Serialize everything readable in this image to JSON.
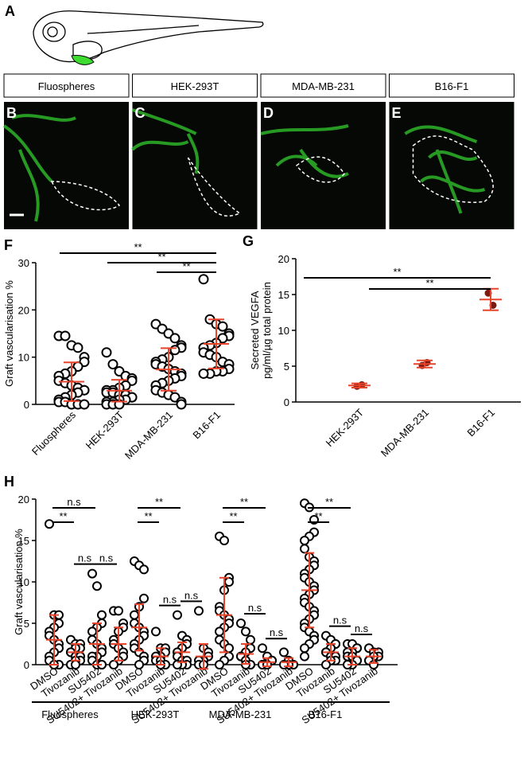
{
  "figure_label": "A",
  "image_panels": [
    {
      "letter": "B",
      "title": "Fluospheres"
    },
    {
      "letter": "C",
      "title": "HEK-293T"
    },
    {
      "letter": "D",
      "title": "MDA-MB-231"
    },
    {
      "letter": "E",
      "title": "B16-F1"
    }
  ],
  "chart_data": [
    {
      "panel": "F",
      "type": "strip",
      "ylabel": "Graft vascularisation %",
      "categories": [
        "Fluospheres",
        "HEK-293T",
        "MDA-MB-231",
        "B16-F1"
      ],
      "values": [
        [
          14.5,
          14.5,
          12.5,
          12,
          10,
          9,
          8,
          7,
          6.5,
          6,
          5,
          4.5,
          4,
          3.5,
          3,
          3,
          2.5,
          2,
          1.5,
          1,
          0.5,
          0.5,
          0,
          0,
          0
        ],
        [
          11,
          8.5,
          7,
          6,
          5.5,
          5,
          4,
          3.5,
          3,
          3,
          2.5,
          2.5,
          2,
          2,
          1.5,
          1.5,
          1,
          1,
          0.5,
          0.5,
          0,
          0,
          0
        ],
        [
          17,
          16,
          15,
          14,
          12.5,
          12,
          11.5,
          10,
          9.5,
          9,
          8.5,
          8,
          7.5,
          7,
          6.5,
          6,
          5.5,
          5,
          4.5,
          4,
          3,
          2.5,
          2,
          1.5,
          0.5,
          0
        ],
        [
          26.5,
          18,
          17,
          16.5,
          15,
          14.5,
          14,
          13,
          12.5,
          12,
          11,
          10.5,
          10,
          9,
          8.5,
          7.5,
          7,
          7,
          6.5,
          6.5
        ]
      ],
      "mean": [
        4.8,
        2.9,
        7.4,
        12.8
      ],
      "sd": [
        4.1,
        2.3,
        4.5,
        5.2
      ],
      "marker_color": "#000000",
      "mean_color": "#e8442c",
      "ylim": [
        0,
        30
      ],
      "yticks": [
        0,
        10,
        20,
        30
      ],
      "significance": [
        {
          "between": [
            "Fluospheres",
            "B16-F1"
          ],
          "label": "**"
        },
        {
          "between": [
            "HEK-293T",
            "B16-F1"
          ],
          "label": "**"
        },
        {
          "between": [
            "MDA-MB-231",
            "B16-F1"
          ],
          "label": "**"
        }
      ]
    },
    {
      "panel": "G",
      "type": "dot",
      "ylabel": [
        "Secreted VEGFA",
        "pg/ml/µg total protein"
      ],
      "categories": [
        "HEK-293T",
        "MDA-MB-231",
        "B16-F1"
      ],
      "values": [
        [
          2.2,
          2.4
        ],
        [
          5.1,
          5.5
        ],
        [
          15.2,
          13.5
        ]
      ],
      "mean": [
        2.3,
        5.3,
        14.3
      ],
      "sd": [
        0.3,
        0.5,
        1.5
      ],
      "marker_color": "#7a1a10",
      "mean_color": "#e8442c",
      "ylim": [
        0,
        20
      ],
      "yticks": [
        0,
        5,
        10,
        15,
        20
      ],
      "significance": [
        {
          "between": [
            "HEK-293T",
            "B16-F1"
          ],
          "label": "**"
        },
        {
          "between": [
            "MDA-MB-231",
            "B16-F1"
          ],
          "label": "**"
        }
      ]
    },
    {
      "panel": "H",
      "type": "grouped-strip",
      "ylabel": "Graft vascularisation %",
      "marker_color": "#000000",
      "mean_color": "#e8442c",
      "ylim": [
        0,
        20
      ],
      "yticks": [
        0,
        5,
        10,
        15,
        20
      ],
      "groups": [
        {
          "name": "Fluospheres",
          "categories": [
            "DMSO",
            "Tivozanib",
            "SU5402",
            "SU5402+ Tivozanib"
          ],
          "values": [
            [
              17,
              6,
              6,
              5,
              4.5,
              4,
              3.5,
              3,
              2.5,
              2,
              1.5,
              1,
              0.5,
              0,
              0,
              0,
              0
            ],
            [
              3,
              2.5,
              2.5,
              2,
              2,
              1.5,
              1.5,
              1,
              1,
              0.5,
              0.5,
              0,
              0,
              0
            ],
            [
              11,
              9.5,
              6,
              5,
              4.5,
              4,
              3,
              2.5,
              2,
              1.5,
              1,
              1,
              0.5,
              0,
              0,
              0
            ],
            [
              6.5,
              6.5,
              5,
              4.5,
              4,
              3,
              2.5,
              2,
              1.5,
              1,
              0.5,
              0,
              0
            ]
          ],
          "mean": [
            3,
            1.5,
            2.5,
            2.5
          ],
          "sd": [
            3,
            1,
            2.5,
            2
          ],
          "significance": [
            {
              "between": [
                "DMSO",
                "SU5402"
              ],
              "label": "n.s"
            },
            {
              "between": [
                "DMSO",
                "Tivozanib"
              ],
              "label": "**"
            },
            {
              "between": [
                "Tivozanib",
                "SU5402"
              ],
              "label": "n.s"
            },
            {
              "between": [
                "SU5402",
                "SU5402+ Tivozanib"
              ],
              "label": "n.s"
            }
          ]
        },
        {
          "name": "HEK-293T",
          "categories": [
            "DMSO",
            "Tivozanib",
            "SU5402",
            "SU5402+ Tivozanib"
          ],
          "values": [
            [
              12.5,
              12,
              11.5,
              8,
              7,
              6,
              5,
              4.5,
              4,
              3.5,
              3,
              2.5,
              2,
              1.5,
              1,
              0.5,
              0
            ],
            [
              4,
              2,
              2,
              1.5,
              1,
              1,
              0.5,
              0.5,
              0,
              0,
              0
            ],
            [
              6,
              3.5,
              3,
              2.5,
              2,
              1.5,
              1,
              0.5,
              0.5,
              0,
              0,
              0
            ],
            [
              6.5,
              2,
              1.5,
              1,
              0.5,
              0.5,
              0,
              0
            ]
          ],
          "mean": [
            4.5,
            1,
            1.5,
            1
          ],
          "sd": [
            2.8,
            1,
            1.2,
            1.5
          ],
          "significance": [
            {
              "between": [
                "DMSO",
                "SU5402"
              ],
              "label": "**"
            },
            {
              "between": [
                "DMSO",
                "Tivozanib"
              ],
              "label": "**"
            },
            {
              "between": [
                "Tivozanib",
                "SU5402"
              ],
              "label": "n.s"
            },
            {
              "between": [
                "SU5402",
                "SU5402+ Tivozanib"
              ],
              "label": "n.s"
            }
          ]
        },
        {
          "name": "MDA-MB-231",
          "categories": [
            "DMSO",
            "Tivozanib",
            "SU5402",
            "SU5402+ Tivozanib"
          ],
          "values": [
            [
              15.5,
              15,
              10.5,
              10,
              9,
              7,
              6.5,
              6,
              5.5,
              5,
              4.5,
              4,
              3,
              2.5,
              2,
              1,
              0.5,
              0
            ],
            [
              5,
              4,
              3,
              2,
              1.5,
              1,
              1,
              0.5,
              0,
              0,
              0
            ],
            [
              2,
              1,
              0.5,
              0.5,
              0,
              0,
              0,
              0
            ],
            [
              1.5,
              0.5,
              0,
              0,
              0,
              0
            ]
          ],
          "mean": [
            6,
            1.3,
            0.3,
            0.3
          ],
          "sd": [
            4.5,
            1.2,
            0.5,
            0.5
          ],
          "significance": [
            {
              "between": [
                "DMSO",
                "SU5402"
              ],
              "label": "**"
            },
            {
              "between": [
                "DMSO",
                "Tivozanib"
              ],
              "label": "**"
            },
            {
              "between": [
                "Tivozanib",
                "SU5402"
              ],
              "label": "n.s"
            },
            {
              "between": [
                "SU5402",
                "SU5402+ Tivozanib"
              ],
              "label": "n.s"
            }
          ]
        },
        {
          "name": "B16-F1",
          "categories": [
            "DMSO",
            "Tivozanib",
            "SU5402",
            "SU5402+ Tivozanib"
          ],
          "values": [
            [
              19.5,
              19,
              17.5,
              16,
              15.5,
              15,
              14,
              13,
              12.5,
              12,
              11.5,
              11,
              10.5,
              10,
              9.5,
              9,
              8.5,
              8,
              7.5,
              7,
              6.5,
              6,
              5.5,
              5,
              4.5,
              4,
              3.5,
              3,
              2.5,
              2,
              1
            ],
            [
              3.5,
              3,
              2.5,
              2.5,
              2,
              1.5,
              1.5,
              1,
              1,
              0.5,
              0.5,
              0
            ],
            [
              2.5,
              2.5,
              2,
              2,
              1.5,
              1.5,
              1,
              1,
              0.5,
              0.5,
              0,
              0
            ],
            [
              2,
              1.5,
              1.5,
              1,
              1,
              0.5,
              0.5,
              0
            ]
          ],
          "mean": [
            9,
            1.5,
            1,
            1
          ],
          "sd": [
            4.5,
            1,
            1,
            0.8
          ],
          "significance": [
            {
              "between": [
                "DMSO",
                "SU5402"
              ],
              "label": "**"
            },
            {
              "between": [
                "DMSO",
                "Tivozanib"
              ],
              "label": "**"
            },
            {
              "between": [
                "Tivozanib",
                "SU5402"
              ],
              "label": "n.s"
            },
            {
              "between": [
                "SU5402",
                "SU5402+ Tivozanib"
              ],
              "label": "n.s"
            }
          ]
        }
      ]
    }
  ]
}
